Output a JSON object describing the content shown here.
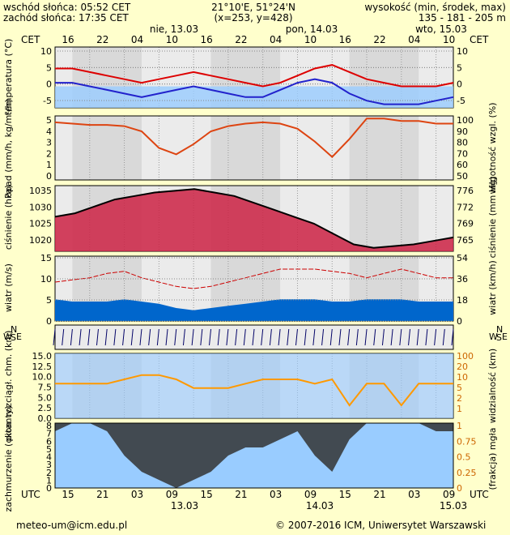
{
  "header": {
    "sunrise": "wschód słońca: 05:52 CET",
    "sunset": "zachód słońca: 17:35 CET",
    "coords": "21°10'E, 51°24'N",
    "grid": "(x=253,  y=428)",
    "elev_label": "wysokość (min, środek, max)",
    "elev_values": "135 - 181 - 205 m"
  },
  "top_axis": {
    "zone": "CET",
    "hours": [
      "16",
      "22",
      "04",
      "10",
      "16",
      "22",
      "04",
      "10",
      "16",
      "22",
      "04",
      "10"
    ],
    "dates": [
      "nie, 13.03",
      "pon, 14.03",
      "wto, 15.03"
    ]
  },
  "bottom_axis": {
    "zone": "UTC",
    "hours": [
      "15",
      "21",
      "03",
      "09",
      "15",
      "21",
      "03",
      "09",
      "15",
      "21",
      "03",
      "09"
    ],
    "dates": [
      "13.03",
      "14.03",
      "15.03"
    ]
  },
  "footer": {
    "email": "meteo-um@icm.edu.pl",
    "copyright": "© 2007-2016 ICM, Uniwersytet Warszawski"
  },
  "colors": {
    "background": "#ffffcc",
    "plot_gray": "#d9d9d9",
    "plot_light": "#ebebeb",
    "sky": "#99ccff",
    "temp_max": "#dd0000",
    "temp_dew": "#2222cc",
    "humidity": "#dd4411",
    "pressure_fill": "#cc2244",
    "wind_fill": "#0066cc",
    "vis_line": "#ff9900",
    "cloud": "#333333"
  },
  "chart_data": [
    {
      "type": "line",
      "panel": "temperature",
      "ylabel": "temperatura (°C)",
      "ylim": [
        -6,
        11
      ],
      "yticks": [
        "10",
        "5",
        "0",
        "-5"
      ],
      "x_hours": [
        0,
        3,
        6,
        9,
        12,
        15,
        18,
        21,
        24,
        27,
        30,
        33,
        36,
        39,
        42,
        45,
        48,
        51,
        54,
        57,
        60,
        63,
        66,
        69
      ],
      "series": [
        {
          "values": [
            5,
            5,
            4,
            3,
            2,
            1,
            2,
            3,
            4,
            3,
            2,
            1,
            0,
            1,
            3,
            5,
            6,
            4,
            2,
            1,
            0,
            0,
            0,
            1
          ]
        },
        {
          "values": [
            1,
            1,
            0,
            -1,
            -2,
            -3,
            -2,
            -1,
            0,
            -1,
            -2,
            -3,
            -3,
            -1,
            1,
            2,
            1,
            -2,
            -4,
            -5,
            -5,
            -5,
            -4,
            -3
          ]
        }
      ]
    },
    {
      "type": "line",
      "panel": "precipitation-humidity",
      "ylabel": "opad (mm/h, kg/m²/h)",
      "ylabel_right": "wilgotność wzgl. (%)",
      "ylim": [
        0,
        5
      ],
      "yticks": [
        "5",
        "4",
        "3",
        "2",
        "1",
        "0"
      ],
      "yticks_right": [
        "100",
        "90",
        "80",
        "70",
        "60",
        "50"
      ],
      "humidity": [
        95,
        94,
        93,
        93,
        92,
        88,
        75,
        70,
        78,
        88,
        92,
        94,
        95,
        94,
        90,
        80,
        68,
        82,
        98,
        98,
        96,
        96,
        94,
        94
      ]
    },
    {
      "type": "area",
      "panel": "pressure",
      "ylabel": "ciśnienie (hPa)",
      "ylabel_right": "ciśnienie (mm Hg)",
      "ylim": [
        1017,
        1036
      ],
      "yticks": [
        "1035",
        "1030",
        "1025",
        "1020"
      ],
      "yticks_right": [
        "776",
        "772",
        "769",
        "765"
      ],
      "values": [
        1027,
        1028,
        1030,
        1032,
        1033,
        1034,
        1034.5,
        1035,
        1034,
        1033,
        1031,
        1029,
        1027,
        1025,
        1022,
        1019,
        1018,
        1018.5,
        1019,
        1020,
        1021
      ]
    },
    {
      "type": "area",
      "panel": "wind",
      "ylabel": "wiatr (m/s)",
      "ylabel_right": "wiatr (km/h)",
      "ylim": [
        0,
        15
      ],
      "yticks": [
        "15",
        "10",
        "5",
        "0"
      ],
      "yticks_right": [
        "54",
        "36",
        "18",
        "0"
      ],
      "gusts": [
        9,
        9.5,
        10,
        11,
        11.5,
        10,
        9,
        8,
        7.5,
        8,
        9,
        10,
        11,
        12,
        12,
        12,
        11.5,
        11,
        10,
        11,
        12,
        11,
        10,
        10
      ],
      "mean": [
        5,
        4.5,
        4.5,
        4.5,
        5,
        4.5,
        4,
        3,
        2.5,
        3,
        3.5,
        4,
        4.5,
        5,
        5,
        5,
        4.5,
        4.5,
        5,
        5,
        5,
        4.5,
        4.5,
        4.5
      ]
    },
    {
      "type": "line",
      "panel": "visibility",
      "ylabel": "pion. rozciągł. chm. (km)",
      "ylabel_right": "widzialność (km)",
      "ylim": [
        0,
        15
      ],
      "yticks": [
        "15.0",
        "12.5",
        "10.0",
        "7.5",
        "5.0",
        "2.5",
        "0.0"
      ],
      "yticks_right": [
        "100",
        "20",
        "10",
        "5",
        "2",
        "1"
      ],
      "visibility": [
        8,
        8,
        8,
        8,
        9,
        10,
        10,
        9,
        7,
        7,
        7,
        8,
        9,
        9,
        9,
        8,
        9,
        3,
        8,
        8,
        3,
        8,
        8,
        8
      ]
    },
    {
      "type": "area",
      "panel": "cloud-fog",
      "ylabel": "zachmurzenie (oktanty)",
      "ylabel_right": "(frakcja) mgła",
      "ylim": [
        0,
        8
      ],
      "yticks": [
        "8",
        "7",
        "6",
        "5",
        "4",
        "3",
        "2",
        "1",
        "0"
      ],
      "yticks_right": [
        "1",
        "0.75",
        "0.5",
        "0.25",
        "0"
      ],
      "cloud": [
        7,
        8,
        8,
        7,
        4,
        2,
        1,
        0,
        1,
        2,
        4,
        5,
        5,
        6,
        7,
        4,
        2,
        6,
        8,
        8,
        8,
        8,
        7,
        7
      ]
    }
  ]
}
